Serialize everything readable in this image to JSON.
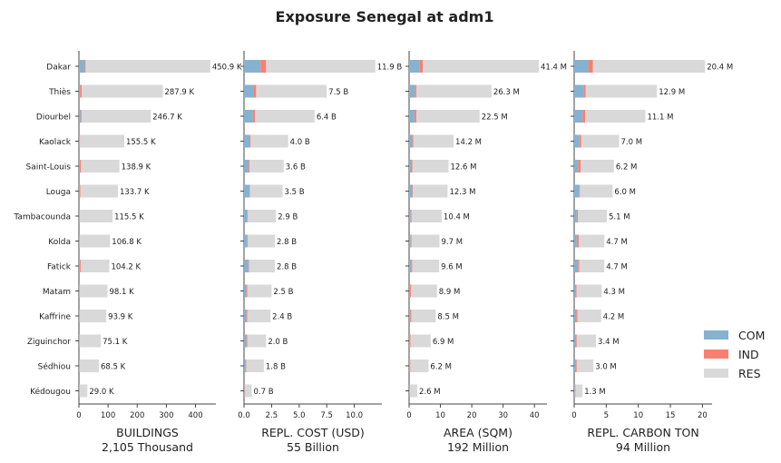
{
  "colors": {
    "COM": "#85b2d1",
    "IND": "#f88070",
    "RES": "#d9d9d9",
    "axis": "#444444"
  },
  "chart_data": {
    "type": "bar",
    "title": "Exposure Senegal at adm1",
    "categories": [
      "Dakar",
      "Thiès",
      "Diourbel",
      "Kaolack",
      "Saint-Louis",
      "Louga",
      "Tambacounda",
      "Kolda",
      "Fatick",
      "Matam",
      "Kaffrine",
      "Ziguinchor",
      "Sédhiou",
      "Kédougou"
    ],
    "legend": {
      "position": "right",
      "entries": [
        "COM",
        "IND",
        "RES"
      ]
    },
    "panels": [
      {
        "xlabel": "BUILDINGS",
        "total_label": "2,105 Thousand",
        "xlim": [
          0,
          470
        ],
        "ticks": [
          0,
          100,
          200,
          300,
          400
        ],
        "tick_labels": [
          "0",
          "100",
          "200",
          "300",
          "400"
        ],
        "series": [
          {
            "name": "COM",
            "values": [
              20,
              4,
              6,
              2,
              2,
              3,
              2,
              2,
              2,
              1,
              1,
              1,
              1,
              1
            ]
          },
          {
            "name": "IND",
            "values": [
              3,
              6,
              3,
              2,
              5,
              2,
              1,
              1,
              4,
              1,
              1,
              1,
              1,
              1
            ]
          },
          {
            "name": "RES",
            "values": [
              427.9,
              277.9,
              237.7,
              151.5,
              131.9,
              128.7,
              112.5,
              103.8,
              98.2,
              96.1,
              91.9,
              73.1,
              66.5,
              27.0
            ]
          }
        ],
        "totals": [
          "450.9 K",
          "287.9 K",
          "246.7 K",
          "155.5 K",
          "138.9 K",
          "133.7 K",
          "115.5 K",
          "106.8 K",
          "104.2 K",
          "98.1 K",
          "93.9 K",
          "75.1 K",
          "68.5 K",
          "29.0 K"
        ]
      },
      {
        "xlabel": "REPL. COST (USD)",
        "total_label": "55 Billion",
        "xlim": [
          0,
          12.5
        ],
        "ticks": [
          0,
          2.5,
          5,
          7.5,
          10
        ],
        "tick_labels": [
          "0.0",
          "2.5",
          "5.0",
          "7.5",
          "10.0"
        ],
        "series": [
          {
            "name": "COM",
            "values": [
              1.5,
              0.9,
              0.8,
              0.5,
              0.4,
              0.5,
              0.3,
              0.3,
              0.4,
              0.2,
              0.2,
              0.2,
              0.1,
              0.05
            ]
          },
          {
            "name": "IND",
            "values": [
              0.5,
              0.2,
              0.2,
              0.1,
              0.1,
              0.05,
              0.05,
              0.05,
              0.05,
              0.1,
              0.1,
              0.1,
              0.1,
              0.05
            ]
          },
          {
            "name": "RES",
            "values": [
              9.9,
              6.4,
              5.4,
              3.4,
              3.1,
              2.95,
              2.55,
              2.45,
              2.35,
              2.2,
              2.1,
              1.7,
              1.6,
              0.6
            ]
          }
        ],
        "totals": [
          "11.9 B",
          "7.5 B",
          "6.4 B",
          "4.0 B",
          "3.6 B",
          "3.5 B",
          "2.9 B",
          "2.8 B",
          "2.8 B",
          "2.5 B",
          "2.4 B",
          "2.0 B",
          "1.8 B",
          "0.7 B"
        ]
      },
      {
        "xlabel": "AREA (SQM)",
        "total_label": "192 Million",
        "xlim": [
          0,
          44
        ],
        "ticks": [
          0,
          10,
          20,
          30,
          40
        ],
        "tick_labels": [
          "0",
          "10",
          "20",
          "30",
          "40"
        ],
        "series": [
          {
            "name": "COM",
            "values": [
              3.4,
              1.8,
              1.7,
              1.0,
              0.7,
              1.0,
              0.5,
              0.5,
              0.8,
              0.3,
              0.4,
              0.3,
              0.2,
              0.1
            ]
          },
          {
            "name": "IND",
            "values": [
              1.0,
              0.5,
              0.6,
              0.3,
              0.4,
              0.2,
              0.3,
              0.3,
              0.2,
              0.3,
              0.3,
              0.2,
              0.2,
              0.1
            ]
          },
          {
            "name": "RES",
            "values": [
              37.0,
              24.0,
              20.2,
              12.9,
              11.5,
              11.1,
              9.6,
              8.9,
              8.6,
              8.3,
              7.8,
              6.4,
              5.8,
              2.4
            ]
          }
        ],
        "totals": [
          "41.4 M",
          "26.3 M",
          "22.5 M",
          "14.2 M",
          "12.6 M",
          "12.3 M",
          "10.4 M",
          "9.7 M",
          "9.6 M",
          "8.9 M",
          "8.5 M",
          "6.9 M",
          "6.2 M",
          "2.6 M"
        ]
      },
      {
        "xlabel": "REPL. CARBON TON",
        "total_label": "94 Million",
        "xlim": [
          0,
          21.5
        ],
        "ticks": [
          0,
          5,
          10,
          15,
          20
        ],
        "tick_labels": [
          "0",
          "5",
          "10",
          "15",
          "20"
        ],
        "series": [
          {
            "name": "COM",
            "values": [
              2.2,
              1.5,
              1.3,
              0.8,
              0.6,
              0.8,
              0.4,
              0.4,
              0.6,
              0.3,
              0.3,
              0.2,
              0.2,
              0.1
            ]
          },
          {
            "name": "IND",
            "values": [
              0.7,
              0.3,
              0.4,
              0.3,
              0.4,
              0.1,
              0.2,
              0.3,
              0.2,
              0.1,
              0.2,
              0.2,
              0.2,
              0.1
            ]
          },
          {
            "name": "RES",
            "values": [
              17.5,
              11.1,
              9.4,
              5.9,
              5.2,
              5.1,
              4.5,
              4.0,
              3.9,
              3.9,
              3.7,
              3.0,
              2.6,
              1.1
            ]
          }
        ],
        "totals": [
          "20.4 M",
          "12.9 M",
          "11.1 M",
          "7.0 M",
          "6.2 M",
          "6.0 M",
          "5.1 M",
          "4.7 M",
          "4.7 M",
          "4.3 M",
          "4.2 M",
          "3.4 M",
          "3.0 M",
          "1.3 M"
        ]
      }
    ]
  }
}
